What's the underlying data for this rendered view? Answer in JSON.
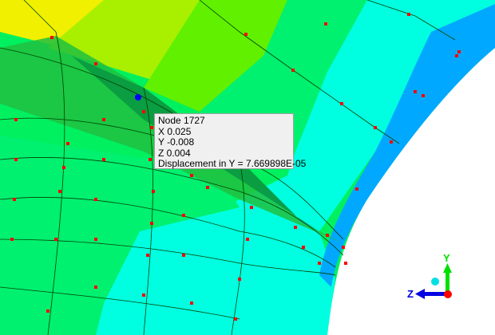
{
  "tooltip": {
    "node": "Node  1727",
    "x": "X  0.025",
    "y": "Y  -0.008",
    "z": "Z  0.004",
    "result": "Displacement in Y = 7.669898E-05"
  },
  "triad": {
    "y_label": "Y",
    "z_label": "Z",
    "y_color": "#00e000",
    "z_color": "#0000e0",
    "origin_color": "#ff0000",
    "x_color": "#00e0e0"
  },
  "colors": {
    "yellow": "#f0f000",
    "yellow_green": "#a8f000",
    "green": "#60f000",
    "green2": "#00f060",
    "cyan_green": "#00ffa0",
    "cyan": "#00ffe0",
    "blue": "#00a8ff",
    "mesh": "#004000",
    "node_marker": "#ff0000",
    "selected_node": "#0000ff"
  }
}
